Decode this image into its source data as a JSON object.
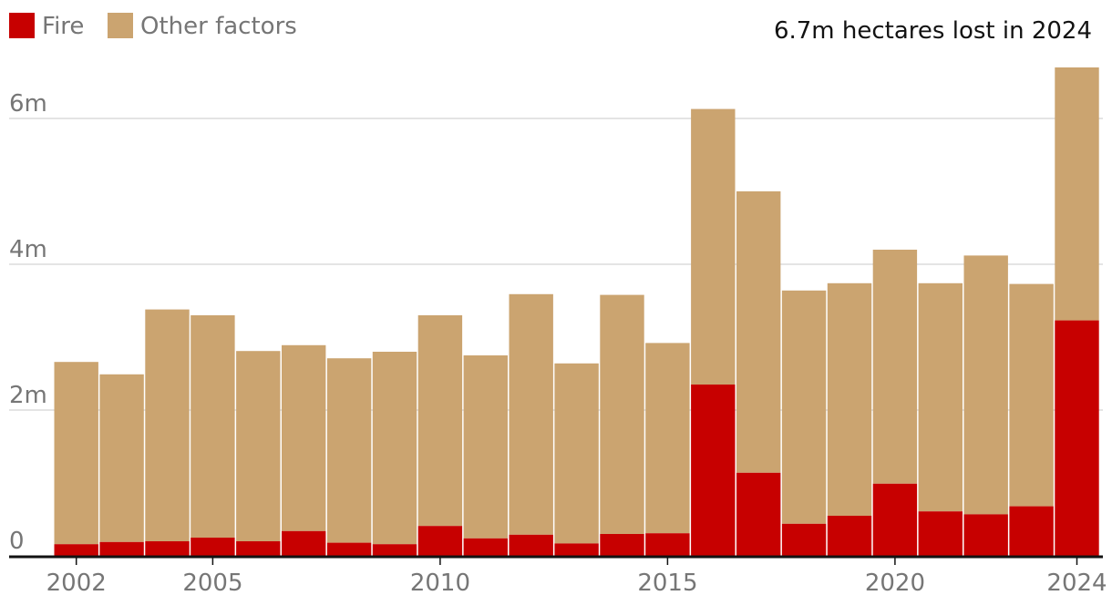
{
  "legend": {
    "items": [
      {
        "label": "Fire",
        "color": "#c70000"
      },
      {
        "label": "Other factors",
        "color": "#cba470"
      }
    ]
  },
  "annotation": {
    "text": "6.7m hectares lost in 2024"
  },
  "chart_data": {
    "type": "bar",
    "stacked": true,
    "title": "",
    "xlabel": "",
    "ylabel": "",
    "unit": "million hectares",
    "ylim": [
      0,
      6.8
    ],
    "grid": true,
    "legend_position": "top-left",
    "categories": [
      2002,
      2003,
      2004,
      2005,
      2006,
      2007,
      2008,
      2009,
      2010,
      2011,
      2012,
      2013,
      2014,
      2015,
      2016,
      2017,
      2018,
      2019,
      2020,
      2021,
      2022,
      2023,
      2024
    ],
    "series": [
      {
        "name": "Fire",
        "color": "#c70000",
        "values": [
          0.16,
          0.19,
          0.2,
          0.25,
          0.2,
          0.34,
          0.18,
          0.16,
          0.41,
          0.24,
          0.29,
          0.17,
          0.3,
          0.31,
          2.35,
          1.14,
          0.44,
          0.55,
          0.99,
          0.61,
          0.57,
          0.68,
          3.23
        ]
      },
      {
        "name": "Other factors",
        "color": "#cba470",
        "values": [
          2.5,
          2.3,
          3.18,
          3.05,
          2.61,
          2.55,
          2.53,
          2.64,
          2.89,
          2.51,
          3.3,
          2.47,
          3.28,
          2.61,
          3.78,
          3.86,
          3.2,
          3.19,
          3.21,
          3.13,
          3.55,
          3.05,
          3.47
        ]
      }
    ],
    "x_tick_labels": [
      "2002",
      "2005",
      "2010",
      "2015",
      "2020",
      "2024"
    ],
    "y_ticks": [
      {
        "value": 0,
        "label": "0"
      },
      {
        "value": 2,
        "label": "2m"
      },
      {
        "value": 4,
        "label": "4m"
      },
      {
        "value": 6,
        "label": "6m"
      }
    ]
  }
}
